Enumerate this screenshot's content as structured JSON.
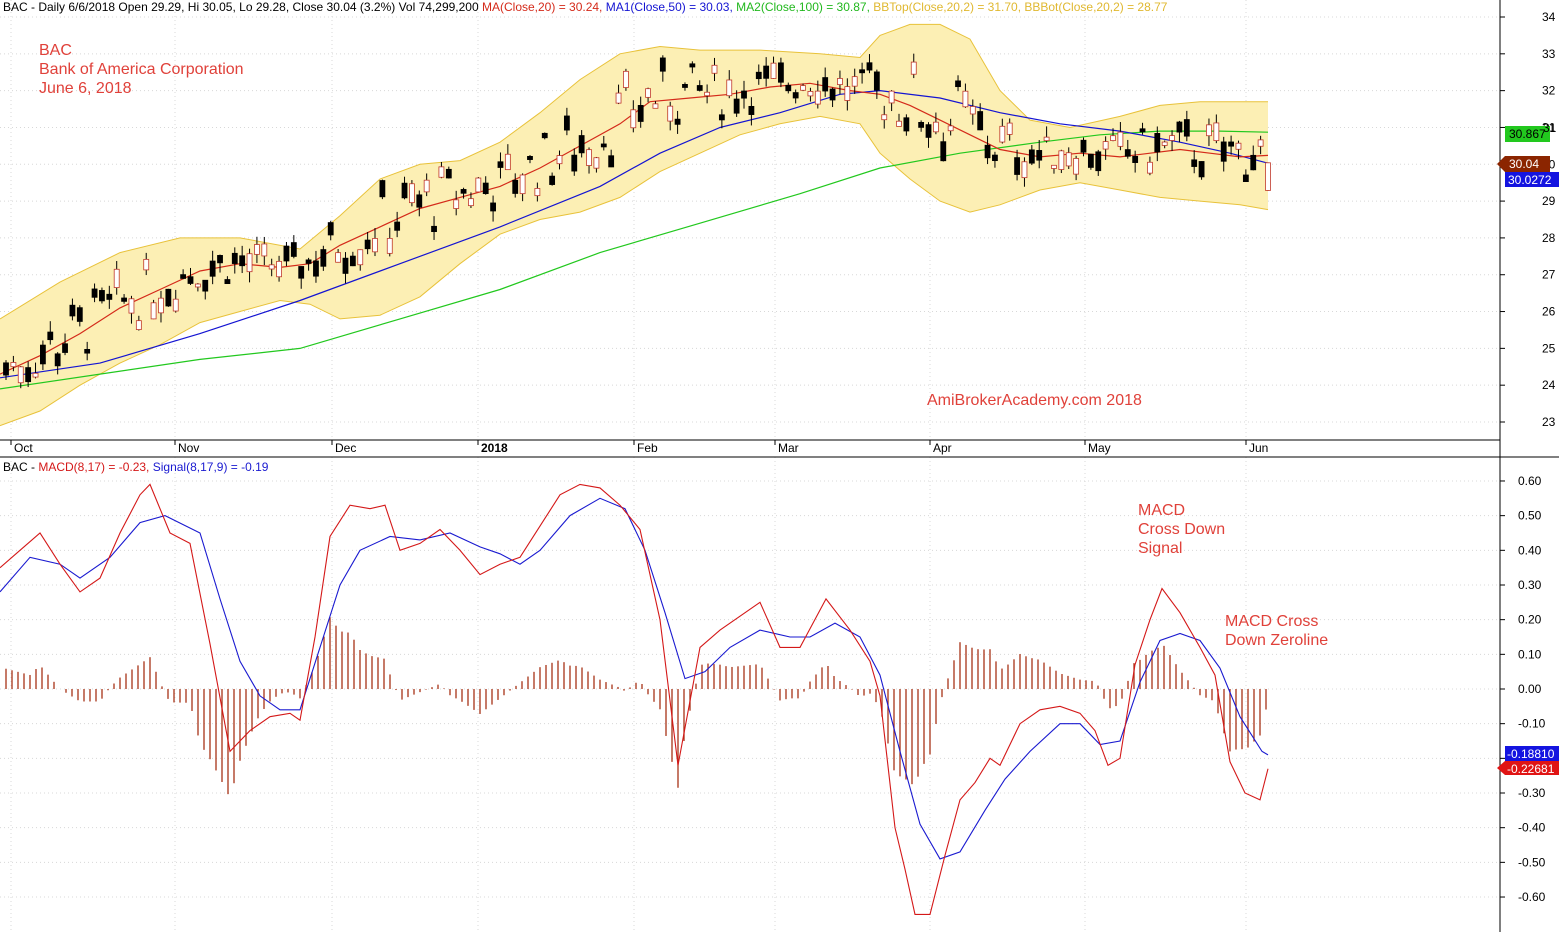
{
  "price_header": {
    "prefix": "BAC - Daily 6/6/2018 Open 29.29, Hi 30.05, Lo 29.28, Close 30.04 (3.2%) Vol 74,299,200",
    "ma20": "MA(Close,20) = 30.24,",
    "ma50": "MA1(Close,50) = 30.03,",
    "ma100": "MA2(Close,100) = 30.87,",
    "bbtop": "BBTop(Close,20,2) = 31.70,",
    "bbbot": "BBBot(Close,20,2) = 28.77"
  },
  "macd_header": {
    "prefix": "BAC - ",
    "macd": "MACD(8,17) = -0.23,",
    "signal": "Signal(8,17,9) = -0.19"
  },
  "annotations": {
    "symbol": "BAC",
    "company": "Bank of America Corporation",
    "date": "June 6, 2018",
    "watermark": "AmiBrokerAcademy.com 2018",
    "note_cross_signal": [
      "MACD",
      "Cross Down",
      "Signal"
    ],
    "note_cross_zero": [
      "MACD Cross",
      "Down Zeroline"
    ]
  },
  "colors": {
    "ma20": "#d42a1a",
    "ma50": "#1414d2",
    "ma100": "#22c81e",
    "bb_line": "#e8c23a",
    "bb_fill": "#fcefb4",
    "macd": "#d41818",
    "signal": "#1a1ad0",
    "hist": "#a83216"
  },
  "chart_data": [
    {
      "type": "candlestick",
      "title": "BAC - Daily 6/6/2018",
      "x_labels": [
        "Oct",
        "Nov",
        "Dec",
        "2018",
        "Feb",
        "Mar",
        "Apr",
        "May",
        "Jun"
      ],
      "y_ticks": [
        23,
        24,
        25,
        26,
        27,
        28,
        29,
        30,
        31,
        32,
        33,
        34
      ],
      "ylim": [
        22.6,
        34.4
      ],
      "last": {
        "open": 29.29,
        "high": 30.05,
        "low": 29.28,
        "close": 30.04,
        "volume": 74299200
      },
      "axis_labels": {
        "close": "30.04",
        "ma50": "30.0272",
        "ma100": "30.867",
        "ma100_partial": "31"
      },
      "ma20_points": [
        [
          0,
          24.3
        ],
        [
          40,
          24.8
        ],
        [
          80,
          25.4
        ],
        [
          120,
          26.1
        ],
        [
          160,
          26.6
        ],
        [
          200,
          27.1
        ],
        [
          240,
          27.3
        ],
        [
          280,
          27.2
        ],
        [
          310,
          27.3
        ],
        [
          340,
          27.8
        ],
        [
          380,
          28.3
        ],
        [
          420,
          28.8
        ],
        [
          460,
          29.1
        ],
        [
          500,
          29.4
        ],
        [
          540,
          29.9
        ],
        [
          580,
          30.5
        ],
        [
          620,
          31.1
        ],
        [
          650,
          31.7
        ],
        [
          690,
          31.8
        ],
        [
          730,
          31.9
        ],
        [
          770,
          32.1
        ],
        [
          810,
          32.2
        ],
        [
          850,
          32.0
        ],
        [
          880,
          31.9
        ],
        [
          910,
          31.6
        ],
        [
          940,
          31.2
        ],
        [
          970,
          30.8
        ],
        [
          1000,
          30.4
        ],
        [
          1040,
          30.2
        ],
        [
          1080,
          30.3
        ],
        [
          1120,
          30.2
        ],
        [
          1150,
          30.3
        ],
        [
          1180,
          30.4
        ],
        [
          1210,
          30.3
        ],
        [
          1240,
          30.2
        ],
        [
          1268,
          30.24
        ]
      ],
      "ma50_points": [
        [
          0,
          24.2
        ],
        [
          100,
          24.6
        ],
        [
          200,
          25.4
        ],
        [
          300,
          26.3
        ],
        [
          400,
          27.3
        ],
        [
          500,
          28.3
        ],
        [
          600,
          29.4
        ],
        [
          660,
          30.3
        ],
        [
          720,
          31.0
        ],
        [
          780,
          31.4
        ],
        [
          840,
          31.9
        ],
        [
          880,
          32.0
        ],
        [
          940,
          31.8
        ],
        [
          1000,
          31.4
        ],
        [
          1060,
          31.1
        ],
        [
          1120,
          30.9
        ],
        [
          1180,
          30.6
        ],
        [
          1230,
          30.3
        ],
        [
          1268,
          30.03
        ]
      ],
      "ma100_points": [
        [
          0,
          23.9
        ],
        [
          100,
          24.3
        ],
        [
          200,
          24.7
        ],
        [
          300,
          25.0
        ],
        [
          400,
          25.8
        ],
        [
          500,
          26.6
        ],
        [
          600,
          27.6
        ],
        [
          700,
          28.4
        ],
        [
          800,
          29.2
        ],
        [
          880,
          29.9
        ],
        [
          960,
          30.3
        ],
        [
          1040,
          30.6
        ],
        [
          1100,
          30.8
        ],
        [
          1160,
          30.9
        ],
        [
          1220,
          30.9
        ],
        [
          1268,
          30.87
        ]
      ],
      "bb_top_points": [
        [
          0,
          25.8
        ],
        [
          60,
          26.8
        ],
        [
          120,
          27.6
        ],
        [
          180,
          28.0
        ],
        [
          240,
          28.0
        ],
        [
          300,
          27.7
        ],
        [
          340,
          28.6
        ],
        [
          380,
          29.6
        ],
        [
          420,
          30.0
        ],
        [
          460,
          30.1
        ],
        [
          500,
          30.6
        ],
        [
          540,
          31.4
        ],
        [
          580,
          32.3
        ],
        [
          620,
          33.0
        ],
        [
          660,
          33.2
        ],
        [
          700,
          33.1
        ],
        [
          760,
          33.1
        ],
        [
          820,
          33.0
        ],
        [
          860,
          32.9
        ],
        [
          880,
          33.5
        ],
        [
          910,
          33.8
        ],
        [
          940,
          33.8
        ],
        [
          970,
          33.4
        ],
        [
          1000,
          32.0
        ],
        [
          1030,
          31.2
        ],
        [
          1070,
          31.0
        ],
        [
          1120,
          31.3
        ],
        [
          1160,
          31.6
        ],
        [
          1200,
          31.7
        ],
        [
          1240,
          31.7
        ],
        [
          1268,
          31.7
        ]
      ],
      "bb_bot_points": [
        [
          0,
          22.9
        ],
        [
          40,
          23.3
        ],
        [
          80,
          24.0
        ],
        [
          120,
          24.6
        ],
        [
          160,
          25.1
        ],
        [
          200,
          25.7
        ],
        [
          240,
          26.0
        ],
        [
          280,
          26.3
        ],
        [
          310,
          26.2
        ],
        [
          340,
          25.8
        ],
        [
          380,
          25.9
        ],
        [
          420,
          26.4
        ],
        [
          460,
          27.3
        ],
        [
          500,
          28.1
        ],
        [
          540,
          28.5
        ],
        [
          580,
          28.7
        ],
        [
          620,
          29.1
        ],
        [
          660,
          29.8
        ],
        [
          700,
          30.3
        ],
        [
          740,
          30.8
        ],
        [
          780,
          31.1
        ],
        [
          820,
          31.3
        ],
        [
          860,
          31.1
        ],
        [
          880,
          30.3
        ],
        [
          910,
          29.6
        ],
        [
          940,
          29.0
        ],
        [
          970,
          28.7
        ],
        [
          1000,
          28.9
        ],
        [
          1040,
          29.3
        ],
        [
          1080,
          29.5
        ],
        [
          1120,
          29.3
        ],
        [
          1160,
          29.1
        ],
        [
          1200,
          29.0
        ],
        [
          1240,
          28.9
        ],
        [
          1268,
          28.77
        ]
      ]
    },
    {
      "type": "line",
      "title": "MACD(8,17) / Signal(8,17,9)",
      "y_ticks": [
        -0.6,
        -0.5,
        -0.4,
        -0.3,
        -0.2,
        -0.1,
        0.0,
        0.1,
        0.2,
        0.3,
        0.4,
        0.5,
        0.6
      ],
      "ylim": [
        -0.66,
        0.6
      ],
      "axis_labels": {
        "signal": "-0.18810",
        "macd": "-0.22681"
      },
      "series": [
        {
          "name": "MACD(8,17)",
          "value": -0.23
        },
        {
          "name": "Signal(8,17,9)",
          "value": -0.19
        }
      ],
      "macd_points": [
        [
          0,
          0.35
        ],
        [
          20,
          0.4
        ],
        [
          40,
          0.45
        ],
        [
          60,
          0.36
        ],
        [
          80,
          0.28
        ],
        [
          100,
          0.32
        ],
        [
          120,
          0.45
        ],
        [
          140,
          0.56
        ],
        [
          150,
          0.59
        ],
        [
          170,
          0.45
        ],
        [
          190,
          0.42
        ],
        [
          210,
          0.13
        ],
        [
          230,
          -0.18
        ],
        [
          250,
          -0.12
        ],
        [
          270,
          -0.08
        ],
        [
          290,
          -0.07
        ],
        [
          300,
          -0.09
        ],
        [
          315,
          0.15
        ],
        [
          330,
          0.44
        ],
        [
          350,
          0.53
        ],
        [
          370,
          0.52
        ],
        [
          385,
          0.53
        ],
        [
          400,
          0.4
        ],
        [
          420,
          0.42
        ],
        [
          440,
          0.46
        ],
        [
          460,
          0.4
        ],
        [
          480,
          0.33
        ],
        [
          500,
          0.36
        ],
        [
          520,
          0.38
        ],
        [
          540,
          0.47
        ],
        [
          560,
          0.56
        ],
        [
          580,
          0.59
        ],
        [
          600,
          0.58
        ],
        [
          620,
          0.53
        ],
        [
          640,
          0.46
        ],
        [
          660,
          0.2
        ],
        [
          678,
          -0.22
        ],
        [
          700,
          0.12
        ],
        [
          720,
          0.17
        ],
        [
          740,
          0.21
        ],
        [
          760,
          0.25
        ],
        [
          780,
          0.12
        ],
        [
          800,
          0.12
        ],
        [
          826,
          0.26
        ],
        [
          850,
          0.17
        ],
        [
          870,
          0.08
        ],
        [
          880,
          -0.02
        ],
        [
          895,
          -0.4
        ],
        [
          905,
          -0.52
        ],
        [
          915,
          -0.65
        ],
        [
          930,
          -0.65
        ],
        [
          945,
          -0.48
        ],
        [
          960,
          -0.32
        ],
        [
          975,
          -0.27
        ],
        [
          990,
          -0.2
        ],
        [
          1000,
          -0.22
        ],
        [
          1020,
          -0.1
        ],
        [
          1040,
          -0.06
        ],
        [
          1060,
          -0.05
        ],
        [
          1080,
          -0.07
        ],
        [
          1095,
          -0.12
        ],
        [
          1108,
          -0.22
        ],
        [
          1120,
          -0.2
        ],
        [
          1135,
          0.07
        ],
        [
          1150,
          0.2
        ],
        [
          1162,
          0.29
        ],
        [
          1180,
          0.22
        ],
        [
          1200,
          0.12
        ],
        [
          1215,
          0.04
        ],
        [
          1230,
          -0.21
        ],
        [
          1245,
          -0.3
        ],
        [
          1260,
          -0.32
        ],
        [
          1268,
          -0.23
        ]
      ],
      "signal_points": [
        [
          0,
          0.28
        ],
        [
          30,
          0.38
        ],
        [
          60,
          0.36
        ],
        [
          80,
          0.32
        ],
        [
          110,
          0.38
        ],
        [
          140,
          0.48
        ],
        [
          165,
          0.5
        ],
        [
          200,
          0.45
        ],
        [
          220,
          0.26
        ],
        [
          240,
          0.08
        ],
        [
          260,
          -0.02
        ],
        [
          280,
          -0.06
        ],
        [
          300,
          -0.06
        ],
        [
          320,
          0.12
        ],
        [
          340,
          0.3
        ],
        [
          360,
          0.4
        ],
        [
          390,
          0.44
        ],
        [
          420,
          0.43
        ],
        [
          450,
          0.45
        ],
        [
          480,
          0.41
        ],
        [
          500,
          0.39
        ],
        [
          520,
          0.36
        ],
        [
          540,
          0.4
        ],
        [
          570,
          0.5
        ],
        [
          600,
          0.55
        ],
        [
          625,
          0.52
        ],
        [
          645,
          0.4
        ],
        [
          665,
          0.22
        ],
        [
          685,
          0.03
        ],
        [
          705,
          0.05
        ],
        [
          730,
          0.12
        ],
        [
          760,
          0.17
        ],
        [
          790,
          0.15
        ],
        [
          810,
          0.15
        ],
        [
          835,
          0.19
        ],
        [
          860,
          0.15
        ],
        [
          880,
          0.04
        ],
        [
          900,
          -0.18
        ],
        [
          920,
          -0.39
        ],
        [
          940,
          -0.49
        ],
        [
          960,
          -0.47
        ],
        [
          985,
          -0.35
        ],
        [
          1005,
          -0.26
        ],
        [
          1030,
          -0.18
        ],
        [
          1060,
          -0.1
        ],
        [
          1080,
          -0.1
        ],
        [
          1100,
          -0.16
        ],
        [
          1120,
          -0.15
        ],
        [
          1140,
          0.02
        ],
        [
          1160,
          0.14
        ],
        [
          1180,
          0.16
        ],
        [
          1200,
          0.14
        ],
        [
          1220,
          0.06
        ],
        [
          1240,
          -0.08
        ],
        [
          1262,
          -0.18
        ],
        [
          1268,
          -0.19
        ]
      ]
    }
  ]
}
